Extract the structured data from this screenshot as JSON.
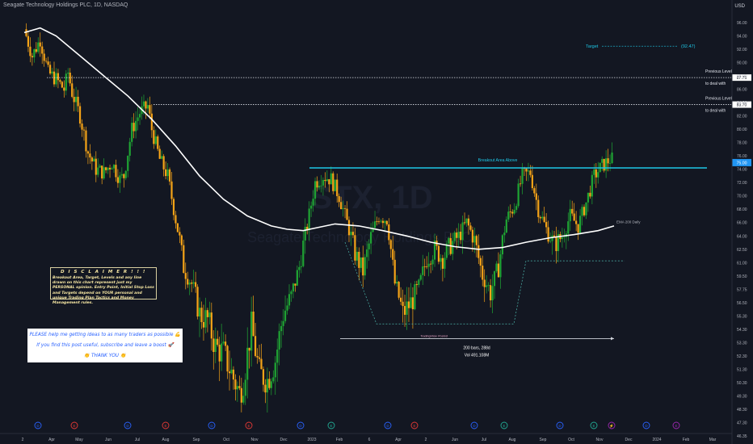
{
  "header": {
    "title": "Seagate Technology Holdings PLC, 1D, NASDAQ",
    "currency": "USD"
  },
  "colors": {
    "background": "#131722",
    "up": "#1fa533",
    "down": "#f5a317",
    "cyan": "#1ec7e6",
    "ema": "#ffffff",
    "axis_text": "#b2b5be",
    "current_price_bg": "#2196f3"
  },
  "chart_data": {
    "type": "candlestick",
    "title": "Seagate Technology Holdings PLC, 1D, NASDAQ",
    "watermark": {
      "symbol": "STX, 1D",
      "name": "Seagate Technology Holdings PLC"
    },
    "ylim": [
      46.35,
      96.1
    ],
    "y_ticks": [
      46.35,
      47.3,
      48.3,
      49.3,
      50.3,
      51.3,
      52.3,
      53.3,
      54.3,
      55.3,
      56.5,
      57.75,
      59.5,
      61.0,
      62.5,
      64.0,
      66.0,
      68.0,
      70.0,
      72.0,
      74.0,
      76.0,
      78.0,
      80.0,
      82.0,
      84.0,
      86.0,
      88.0,
      90.0,
      92.0,
      94.0,
      96.0
    ],
    "y_tick_labels": [
      "46.35",
      "47.30",
      "48.30",
      "49.30",
      "50.30",
      "51.30",
      "52.30",
      "53.30",
      "54.30",
      "55.30",
      "56.50",
      "57.75",
      "59.50",
      "61.00",
      "62.50",
      "64.00",
      "66.00",
      "68.00",
      "70.00",
      "72.00",
      "74.00",
      "76.00",
      "78.00",
      "80.00",
      "82.00",
      "84.00",
      "86.00",
      "88.00",
      "90.00",
      "92.00",
      "94.00",
      "96.00"
    ],
    "x_labels": [
      "2",
      "Apr",
      "May",
      "Jun",
      "Jul",
      "Aug",
      "Sep",
      "Oct",
      "Nov",
      "Dec",
      "2023",
      "Feb",
      "6",
      "Apr",
      "2",
      "Jun",
      "Jul",
      "Aug",
      "Sep",
      "Oct",
      "Nov",
      "Dec",
      "2024",
      "Feb",
      "Mar"
    ],
    "price_path": [
      [
        0,
        95.0
      ],
      [
        2,
        91.0
      ],
      [
        4,
        93.5
      ],
      [
        6,
        88.5
      ],
      [
        8,
        87.5
      ],
      [
        10,
        86.0
      ],
      [
        11,
        88.5
      ],
      [
        12,
        85.5
      ],
      [
        14,
        82.0
      ],
      [
        16,
        76.5
      ],
      [
        18,
        74.0
      ],
      [
        20,
        73.5
      ],
      [
        22,
        75.0
      ],
      [
        24,
        72.5
      ],
      [
        25,
        73.0
      ],
      [
        27,
        80.0
      ],
      [
        29,
        82.5
      ],
      [
        31,
        83.5
      ],
      [
        32,
        80.0
      ],
      [
        34,
        75.5
      ],
      [
        36,
        73.0
      ],
      [
        38,
        66.5
      ],
      [
        40,
        60.5
      ],
      [
        42,
        58.5
      ],
      [
        44,
        55.5
      ],
      [
        46,
        55.0
      ],
      [
        48,
        53.0
      ],
      [
        50,
        52.5
      ],
      [
        52,
        51.0
      ],
      [
        54,
        49.5
      ],
      [
        55,
        50.5
      ],
      [
        57,
        54.5
      ],
      [
        59,
        51.0
      ],
      [
        61,
        50.5
      ],
      [
        63,
        52.0
      ],
      [
        65,
        55.5
      ],
      [
        67,
        57.0
      ],
      [
        69,
        60.5
      ],
      [
        71,
        65.5
      ],
      [
        73,
        72.0
      ],
      [
        75,
        73.0
      ],
      [
        77,
        72.5
      ],
      [
        79,
        70.0
      ],
      [
        81,
        66.0
      ],
      [
        83,
        62.0
      ],
      [
        85,
        60.0
      ],
      [
        87,
        64.0
      ],
      [
        89,
        67.0
      ],
      [
        91,
        66.5
      ],
      [
        93,
        58.5
      ],
      [
        95,
        55.5
      ],
      [
        97,
        56.5
      ],
      [
        99,
        58.0
      ],
      [
        101,
        61.5
      ],
      [
        103,
        62.5
      ],
      [
        105,
        61.5
      ],
      [
        107,
        63.0
      ],
      [
        109,
        64.0
      ],
      [
        111,
        66.0
      ],
      [
        113,
        63.5
      ],
      [
        115,
        59.5
      ],
      [
        117,
        57.5
      ],
      [
        119,
        60.5
      ],
      [
        121,
        66.5
      ],
      [
        123,
        68.5
      ],
      [
        125,
        73.0
      ],
      [
        127,
        73.5
      ],
      [
        129,
        68.0
      ],
      [
        131,
        65.0
      ],
      [
        133,
        63.0
      ],
      [
        135,
        64.0
      ],
      [
        137,
        67.0
      ],
      [
        139,
        65.5
      ],
      [
        141,
        69.0
      ],
      [
        143,
        73.0
      ],
      [
        145,
        74.5
      ],
      [
        147,
        75.5
      ]
    ],
    "ema": {
      "name": "EMA 200 Daily",
      "values": [
        [
          0,
          94.5
        ],
        [
          4,
          95.2
        ],
        [
          8,
          94.0
        ],
        [
          14,
          91.0
        ],
        [
          20,
          88.0
        ],
        [
          26,
          85.0
        ],
        [
          32,
          81.5
        ],
        [
          38,
          77.5
        ],
        [
          44,
          73.0
        ],
        [
          50,
          69.5
        ],
        [
          56,
          67.0
        ],
        [
          62,
          65.5
        ],
        [
          66,
          65.0
        ],
        [
          70,
          64.8
        ],
        [
          74,
          65.3
        ],
        [
          78,
          65.8
        ],
        [
          84,
          65.5
        ],
        [
          90,
          64.8
        ],
        [
          96,
          64.0
        ],
        [
          102,
          63.3
        ],
        [
          108,
          62.8
        ],
        [
          114,
          62.5
        ],
        [
          120,
          62.7
        ],
        [
          126,
          63.3
        ],
        [
          132,
          63.8
        ],
        [
          138,
          64.2
        ],
        [
          144,
          64.8
        ],
        [
          148,
          65.5
        ]
      ]
    },
    "levels": [
      {
        "value": 92.47,
        "label": "Target",
        "tag": "(92.47)"
      },
      {
        "value": 87.75,
        "label": "Previous Level to deal with",
        "tag": "87.75"
      },
      {
        "value": 83.7,
        "label": "Previous Level to deal with",
        "tag": "83.70"
      },
      {
        "value": 74.2,
        "label": "Breakout Area Above"
      },
      {
        "value": 75.0,
        "tag": "75.00",
        "current": true
      }
    ],
    "annotations": {
      "measure": {
        "bars": "200 bars, 288d",
        "vol": "Vol 491.108M"
      },
      "brand": "TradingView Posted",
      "ema_label": "EMA 200 Daily"
    },
    "events": [
      {
        "label": "D",
        "color": "#2962ff"
      },
      {
        "label": "E",
        "color": "#e53935"
      },
      {
        "label": "D",
        "color": "#2962ff"
      },
      {
        "label": "E",
        "color": "#e53935"
      },
      {
        "label": "D",
        "color": "#2962ff"
      },
      {
        "label": "E",
        "color": "#e53935"
      },
      {
        "label": "D",
        "color": "#2962ff"
      },
      {
        "label": "E",
        "color": "#22ab94"
      },
      {
        "label": "D",
        "color": "#2962ff"
      },
      {
        "label": "E",
        "color": "#e53935"
      },
      {
        "label": "D",
        "color": "#2962ff"
      },
      {
        "label": "E",
        "color": "#22ab94"
      },
      {
        "label": "D",
        "color": "#2962ff"
      },
      {
        "label": "E",
        "color": "#22ab94"
      },
      {
        "label": "⚡",
        "color": "#9c27b0"
      },
      {
        "label": "D",
        "color": "#2962ff"
      },
      {
        "label": "E",
        "color": "#9c27b0"
      }
    ]
  },
  "disclaimer": {
    "title": "D I S C L A I M E R  ! ! !",
    "body": "Breakout Area, Target, Levels and any line drawn on this chart represent just my PERSONAL opinion. Entry Point, Initial Stop Loss and Targets depend on YOUR personal and unique Trading Plan Tactics and Money Management rules."
  },
  "help_box": {
    "line1": "PLEASE help me getting ideas to as many traders as possible 💪",
    "line2": "If you find this post useful, subscribe and leave a boost 🚀",
    "line3": "👏 THANK YOU 👏"
  }
}
